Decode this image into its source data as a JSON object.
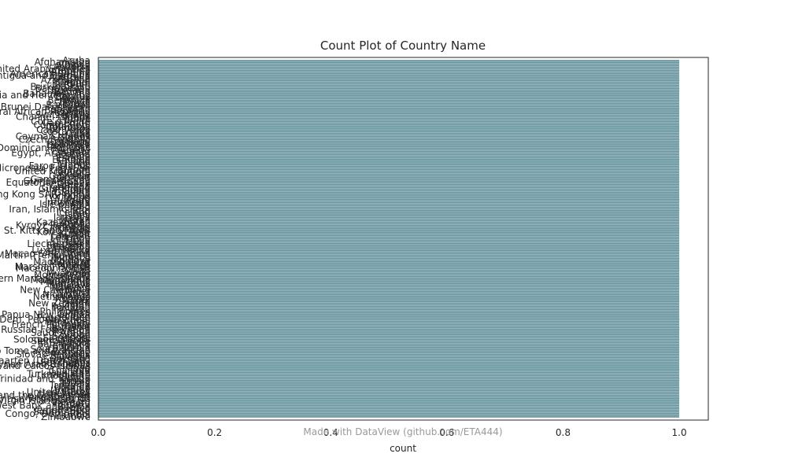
{
  "chart_data": {
    "type": "bar",
    "orientation": "horizontal",
    "title": "Count Plot of Country Name",
    "xlabel": "count",
    "ylabel": "",
    "xlim": [
      0,
      1.05
    ],
    "xticks": [
      "0.0",
      "0.2",
      "0.4",
      "0.6",
      "0.8",
      "1.0"
    ],
    "grid": false,
    "bar_color": "#5f8f9a",
    "categories": [
      "Aruba",
      "Afghanistan",
      "Angola",
      "Albania",
      "Andorra",
      "United Arab Emirates",
      "Argentina",
      "Armenia",
      "American Samoa",
      "Antigua and Barbuda",
      "Australia",
      "Austria",
      "Azerbaijan",
      "Burundi",
      "Belgium",
      "Benin",
      "Burkina Faso",
      "Bangladesh",
      "Bulgaria",
      "Bahrain",
      "Bahamas, The",
      "Bosnia and Herzegovina",
      "Belarus",
      "Belize",
      "Bermuda",
      "Bolivia",
      "Brazil",
      "Barbados",
      "Brunei Darussalam",
      "Bhutan",
      "Botswana",
      "Central African Republic",
      "Canada",
      "Switzerland",
      "Channel Islands",
      "Chile",
      "China",
      "Cote d'Ivoire",
      "Cameroon",
      "Congo, Rep.",
      "Colombia",
      "Comoros",
      "Cabo Verde",
      "Costa Rica",
      "Cuba",
      "Curacao",
      "Cayman Islands",
      "Cyprus",
      "Czech Republic",
      "Germany",
      "Djibouti",
      "Dominica",
      "Denmark",
      "Dominican Republic",
      "Algeria",
      "Ecuador",
      "Egypt, Arab Rep.",
      "Eritrea",
      "Spain",
      "Estonia",
      "Ethiopia",
      "Finland",
      "Fiji",
      "France",
      "Faroe Islands",
      "Micronesia, Fed. Sts.",
      "Gabon",
      "United Kingdom",
      "Georgia",
      "Ghana",
      "Gibraltar",
      "Guinea",
      "Gambia, The",
      "Guinea-Bissau",
      "Equatorial Guinea",
      "Greece",
      "Grenada",
      "Greenland",
      "Guatemala",
      "Guam",
      "Guyana",
      "Hong Kong SAR, China",
      "Honduras",
      "Croatia",
      "Haiti",
      "Hungary",
      "Indonesia",
      "Isle of Man",
      "India",
      "Ireland",
      "Iran, Islamic Rep.",
      "Iraq",
      "Iceland",
      "Israel",
      "Italy",
      "Jamaica",
      "Jordan",
      "Japan",
      "Kazakhstan",
      "Kenya",
      "Kyrgyz Republic",
      "Cambodia",
      "Kiribati",
      "St. Kitts and Nevis",
      "Korea, Rep.",
      "Kuwait",
      "Lao PDR",
      "Lebanon",
      "Liberia",
      "Libya",
      "St. Lucia",
      "Liechtenstein",
      "Sri Lanka",
      "Lesotho",
      "Lithuania",
      "Luxembourg",
      "Latvia",
      "Macao SAR, China",
      "St. Martin (French part)",
      "Morocco",
      "Monaco",
      "Moldova",
      "Madagascar",
      "Maldives",
      "Mexico",
      "Marshall Islands",
      "Macedonia, FYR",
      "Mali",
      "Malta",
      "Myanmar",
      "Montenegro",
      "Mongolia",
      "Northern Mariana Islands",
      "Mozambique",
      "Mauritania",
      "Mauritius",
      "Malawi",
      "Malaysia",
      "Namibia",
      "New Caledonia",
      "Niger",
      "Nigeria",
      "Nicaragua",
      "Netherlands",
      "Norway",
      "Nepal",
      "Nauru",
      "New Zealand",
      "Oman",
      "Pakistan",
      "Panama",
      "Peru",
      "Philippines",
      "Palau",
      "Papua New Guinea",
      "Poland",
      "Puerto Rico",
      "Korea, Dem. People's Rep.",
      "Portugal",
      "Paraguay",
      "French Polynesia",
      "Qatar",
      "Romania",
      "Russian Federation",
      "Rwanda",
      "Saudi Arabia",
      "Sudan",
      "Senegal",
      "Singapore",
      "Solomon Islands",
      "Sierra Leone",
      "El Salvador",
      "San Marino",
      "Somalia",
      "Serbia",
      "South Sudan",
      "Sao Tome and Principe",
      "Suriname",
      "Slovak Republic",
      "Slovenia",
      "Sweden",
      "Swaziland",
      "Sint Maarten (Dutch part)",
      "Seychelles",
      "Syrian Arab Republic",
      "Turks and Caicos Islands",
      "Chad",
      "Togo",
      "Thailand",
      "Tajikistan",
      "Turkmenistan",
      "Timor-Leste",
      "Tonga",
      "Trinidad and Tobago",
      "Tunisia",
      "Turkey",
      "Tuvalu",
      "Tanzania",
      "Uganda",
      "Ukraine",
      "Uruguay",
      "United States",
      "Uzbekistan",
      "St. Vincent and the Grenadines",
      "Venezuela, RB",
      "British Virgin Islands",
      "Virgin Islands (U.S.)",
      "Vietnam",
      "Vanuatu",
      "West Bank and Gaza",
      "Samoa",
      "Kosovo",
      "Yemen, Rep.",
      "South Africa",
      "Congo, Dem. Rep.",
      "Zambia",
      "Zimbabwe"
    ],
    "value": 1
  },
  "watermark": "Made with DataView (github.com/ETA444)"
}
